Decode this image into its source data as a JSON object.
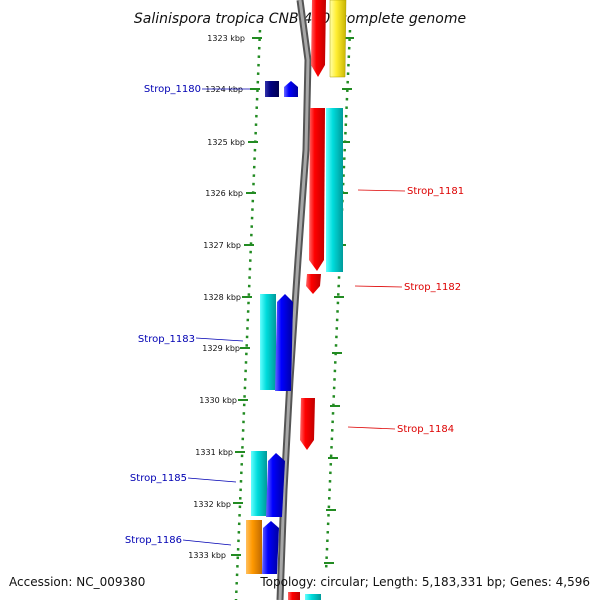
{
  "title": "Salinispora tropica CNB-440, complete genome",
  "footer": {
    "accession": "Accession: NC_009380",
    "summary": "Topology: circular; Length: 5,183,331 bp; Genes: 4,596"
  },
  "kbp_labels": [
    "1323 kbp",
    "1324 kbp",
    "1325 kbp",
    "1326 kbp",
    "1327 kbp",
    "1328 kbp",
    "1329 kbp",
    "1330 kbp",
    "1331 kbp",
    "1332 kbp",
    "1333 kbp"
  ],
  "genes": [
    {
      "label": "Strop_1180",
      "color": "#0000b3",
      "side": "left"
    },
    {
      "label": "Strop_1181",
      "color": "#dd0000",
      "side": "right"
    },
    {
      "label": "Strop_1182",
      "color": "#dd0000",
      "side": "right"
    },
    {
      "label": "Strop_1183",
      "color": "#0000b3",
      "side": "left"
    },
    {
      "label": "Strop_1184",
      "color": "#dd0000",
      "side": "right"
    },
    {
      "label": "Strop_1185",
      "color": "#0000b3",
      "side": "left"
    },
    {
      "label": "Strop_1186",
      "color": "#0000b3",
      "side": "left"
    }
  ],
  "colors": {
    "backbone": "#888888",
    "ticks": "#228b22",
    "red": "#ff0000",
    "cyan": "#00d8d8",
    "blue": "#0000ff",
    "navy": "#000080",
    "orange": "#ff9900",
    "yellow": "#ffee33"
  }
}
